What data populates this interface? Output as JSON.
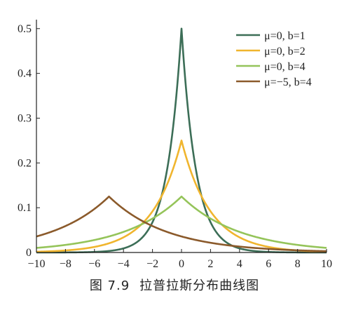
{
  "caption": {
    "figure_number": "图 7.9",
    "title": "拉普拉斯分布曲线图"
  },
  "chart_data": {
    "type": "line",
    "title": "",
    "xlabel": "",
    "ylabel": "",
    "xlim": [
      -10,
      10
    ],
    "ylim": [
      0,
      0.52
    ],
    "x_ticks": [
      -10,
      -8,
      -6,
      -4,
      -2,
      0,
      2,
      4,
      6,
      8,
      10
    ],
    "x_tick_labels": [
      "−10",
      "−8",
      "−6",
      "−4",
      "−2",
      "0",
      "2",
      "4",
      "6",
      "8",
      "10"
    ],
    "y_ticks": [
      0,
      0.1,
      0.2,
      0.3,
      0.4,
      0.5
    ],
    "y_tick_labels": [
      "0",
      "0.1",
      "0.2",
      "0.3",
      "0.4",
      "0.5"
    ],
    "grid": false,
    "legend_position": "top-right",
    "series": [
      {
        "name": "μ=0, b=1",
        "mu": 0,
        "b": 1,
        "color": "#3c6e57",
        "peak": 0.5
      },
      {
        "name": "μ=0, b=2",
        "mu": 0,
        "b": 2,
        "color": "#f0b52e",
        "peak": 0.25
      },
      {
        "name": "μ=0, b=4",
        "mu": 0,
        "b": 4,
        "color": "#95c45a",
        "peak": 0.125
      },
      {
        "name": "μ=−5, b=4",
        "mu": -5,
        "b": 4,
        "color": "#8b5a2b",
        "peak": 0.125
      }
    ]
  }
}
